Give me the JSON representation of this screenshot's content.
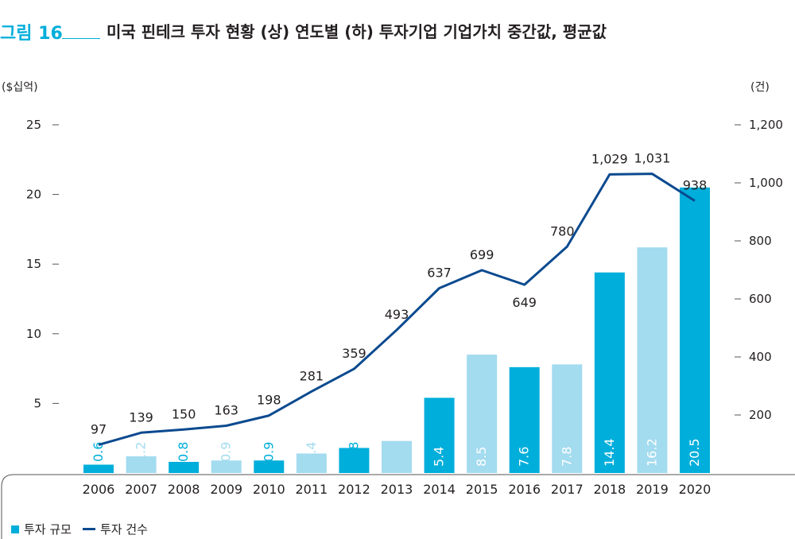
{
  "figure": {
    "label": "그림 16",
    "title": "미국 핀테크 투자 현황 (상) 연도별 (하) 투자기업 기업가치 중간값, 평균값"
  },
  "chart_data": {
    "type": "bar",
    "categories": [
      "2006",
      "2007",
      "2008",
      "2009",
      "2010",
      "2011",
      "2012",
      "2013",
      "2014",
      "2015",
      "2016",
      "2017",
      "2018",
      "2019",
      "2020"
    ],
    "series": [
      {
        "name": "투자 규모",
        "type": "bar",
        "axis": "left",
        "values": [
          0.6,
          1.2,
          0.8,
          0.9,
          0.9,
          1.4,
          1.8,
          2.3,
          5.4,
          8.5,
          7.6,
          7.8,
          14.4,
          16.2,
          20.5
        ],
        "labels": [
          "0.6",
          "1.2",
          "0.8",
          "0.9",
          "0.9",
          "1.4",
          "1.8",
          "2.3",
          "5.4",
          "8.5",
          "7.6",
          "7.8",
          "14.4",
          "16.2",
          "20.5"
        ]
      },
      {
        "name": "투자 건수",
        "type": "line",
        "axis": "right",
        "values": [
          97,
          139,
          150,
          163,
          198,
          281,
          359,
          493,
          637,
          699,
          649,
          780,
          1029,
          1031,
          938
        ],
        "labels": [
          "97",
          "139",
          "150",
          "163",
          "198",
          "281",
          "359",
          "493",
          "637",
          "699",
          "649",
          "780",
          "1,029",
          "1,031",
          "938"
        ]
      }
    ],
    "y_left": {
      "unit_label": "($십억)",
      "range": [
        0,
        25
      ],
      "ticks": [
        "5",
        "10",
        "15",
        "20",
        "25"
      ],
      "tick_values": [
        5,
        10,
        15,
        20,
        25
      ]
    },
    "y_right": {
      "unit_label": "(건)",
      "range": [
        0,
        1200
      ],
      "ticks": [
        "200",
        "400",
        "600",
        "800",
        "1,000",
        "1,200"
      ],
      "tick_values": [
        200,
        400,
        600,
        800,
        1000,
        1200
      ]
    },
    "colors": {
      "bar_dark": "#00aedb",
      "bar_light": "#a3dbef",
      "line": "#0b4a8f"
    },
    "legend": {
      "position": "bottom-left",
      "items": [
        "투자 규모",
        "투자 건수"
      ]
    }
  }
}
